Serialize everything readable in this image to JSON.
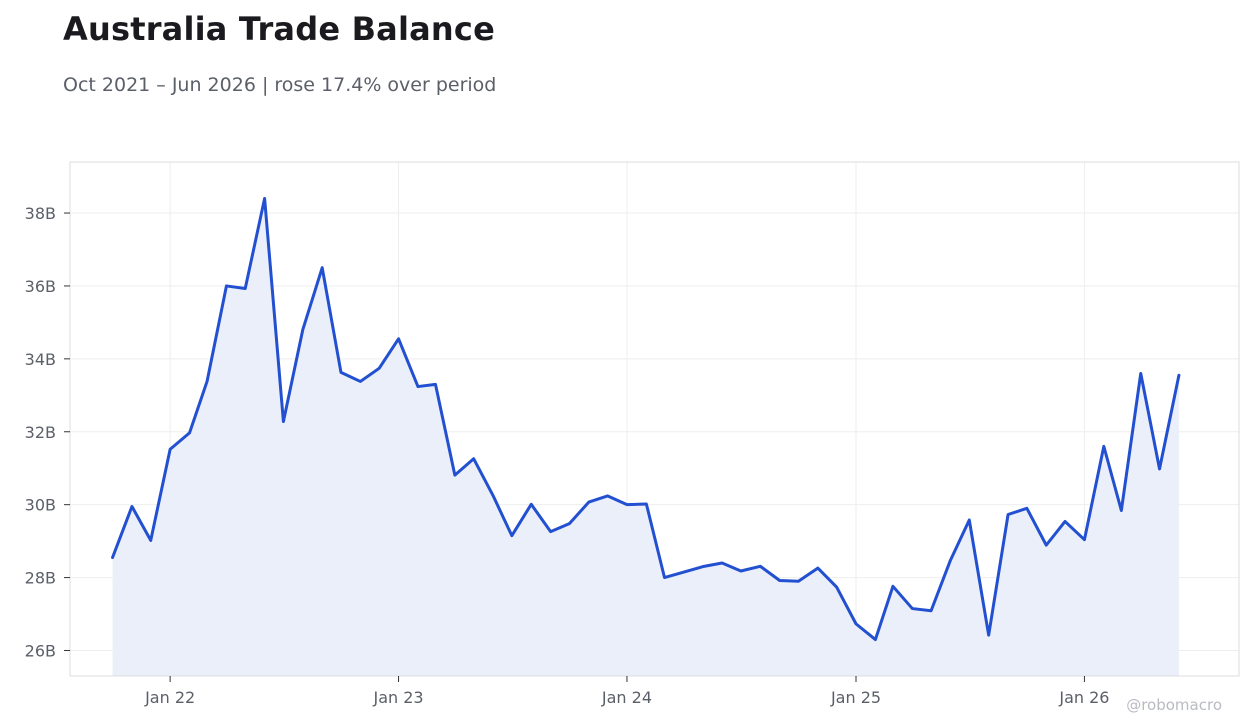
{
  "header": {
    "title": "Australia Trade Balance",
    "subtitle": "Oct 2021 – Jun 2026 | rose 17.4% over period"
  },
  "watermark": "@robomacro",
  "colors": {
    "line": "#2250d0",
    "area": "#ebeffa",
    "grid": "#eeeeee",
    "frame": "#dddddd",
    "tick_text": "#5b5f68"
  },
  "chart_data": {
    "type": "area",
    "title": "Australia Trade Balance",
    "subtitle": "Oct 2021 – Jun 2026 | rose 17.4% over period",
    "xlabel": "",
    "ylabel": "",
    "grid": true,
    "ylim": [
      25.3,
      39.4
    ],
    "xlim": [
      "2021-07-25",
      "2026-09-05"
    ],
    "y_ticks": [
      {
        "value": 26,
        "label": "26B"
      },
      {
        "value": 28,
        "label": "28B"
      },
      {
        "value": 30,
        "label": "30B"
      },
      {
        "value": 32,
        "label": "32B"
      },
      {
        "value": 34,
        "label": "34B"
      },
      {
        "value": 36,
        "label": "36B"
      },
      {
        "value": 38,
        "label": "38B"
      }
    ],
    "x_ticks": [
      {
        "date": "2022-01-01",
        "label": "Jan 22"
      },
      {
        "date": "2023-01-01",
        "label": "Jan 23"
      },
      {
        "date": "2024-01-01",
        "label": "Jan 24"
      },
      {
        "date": "2025-01-01",
        "label": "Jan 25"
      },
      {
        "date": "2026-01-01",
        "label": "Jan 26"
      }
    ],
    "x": [
      "2021-10",
      "2021-11",
      "2021-12",
      "2022-01",
      "2022-02",
      "2022-03",
      "2022-04",
      "2022-05",
      "2022-06",
      "2022-07",
      "2022-08",
      "2022-09",
      "2022-10",
      "2022-11",
      "2022-12",
      "2023-01",
      "2023-02",
      "2023-03",
      "2023-04",
      "2023-05",
      "2023-06",
      "2023-07",
      "2023-08",
      "2023-09",
      "2023-10",
      "2023-11",
      "2023-12",
      "2024-01",
      "2024-02",
      "2024-03",
      "2024-04",
      "2024-05",
      "2024-06",
      "2024-07",
      "2024-08",
      "2024-09",
      "2024-10",
      "2024-11",
      "2024-12",
      "2025-01",
      "2025-02",
      "2025-03",
      "2025-04",
      "2025-05",
      "2025-06",
      "2025-07",
      "2025-08",
      "2025-09",
      "2025-10",
      "2025-11",
      "2025-12",
      "2026-01",
      "2026-02",
      "2026-03",
      "2026-04",
      "2026-05",
      "2026-06"
    ],
    "series": [
      {
        "values": [
          28.55,
          29.95,
          29.02,
          31.52,
          31.97,
          33.38,
          36.0,
          35.93,
          38.4,
          32.28,
          34.8,
          36.5,
          33.63,
          33.38,
          33.74,
          34.55,
          33.24,
          33.3,
          30.81,
          31.26,
          30.25,
          29.15,
          30.01,
          29.26,
          29.48,
          30.07,
          30.24,
          30.0,
          30.02,
          28.0,
          28.15,
          28.3,
          28.4,
          28.18,
          28.31,
          27.92,
          27.9,
          28.26,
          27.74,
          26.73,
          26.3,
          27.76,
          27.15,
          27.09,
          28.48,
          29.58,
          26.42,
          29.73,
          29.9,
          28.89,
          29.54,
          29.04,
          31.6,
          29.84,
          33.6,
          30.98,
          33.55
        ]
      }
    ]
  }
}
